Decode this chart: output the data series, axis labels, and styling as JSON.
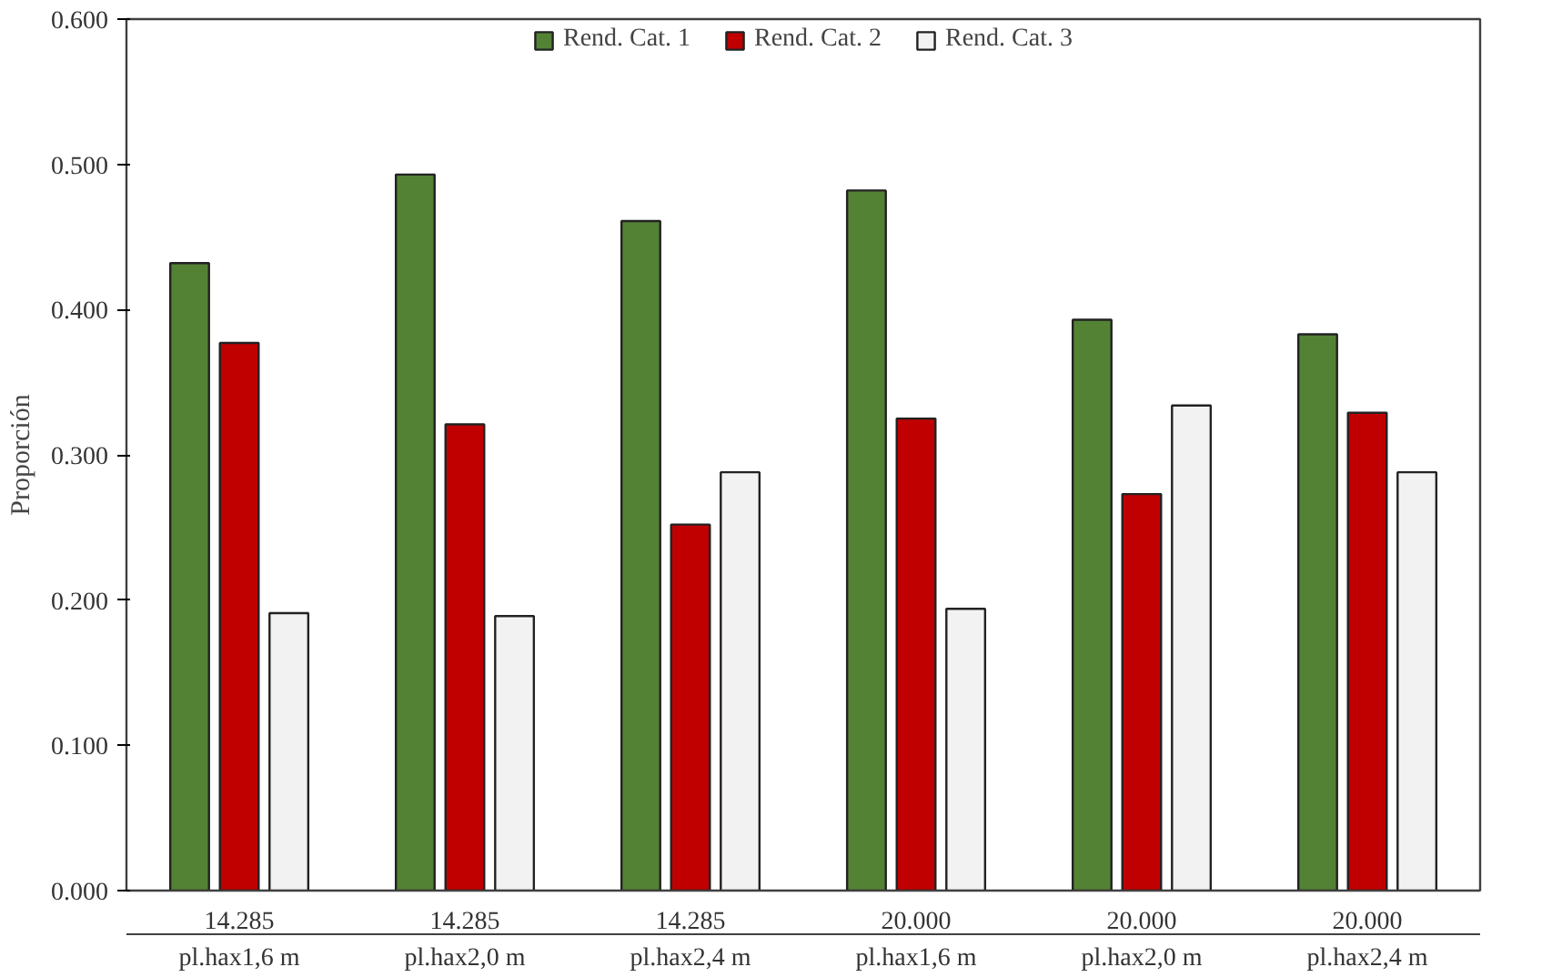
{
  "chart_data": {
    "type": "bar",
    "ylabel": "Proporción",
    "categories": [
      "14.285\npl.hax1,6 m",
      "14.285\npl.hax2,0 m",
      "14.285\npl.hax2,4 m",
      "20.000\npl.hax1,6 m",
      "20.000\npl.hax2,0 m",
      "20.000\npl.hax2,4 m"
    ],
    "series": [
      {
        "name": "Rend. Cat. 1",
        "color": "#548235",
        "values": [
          0.432,
          0.493,
          0.461,
          0.482,
          0.393,
          0.383
        ]
      },
      {
        "name": "Rend. Cat. 2",
        "color": "#c00000",
        "values": [
          0.377,
          0.321,
          0.252,
          0.325,
          0.273,
          0.329
        ]
      },
      {
        "name": "Rend. Cat. 3",
        "color": "#f2f2f2",
        "values": [
          0.191,
          0.189,
          0.288,
          0.194,
          0.334,
          0.288
        ]
      }
    ],
    "ylim": [
      0,
      0.6
    ],
    "yticks": [
      {
        "value": 0,
        "label": "0.000"
      },
      {
        "value": 0.1,
        "label": "0.100"
      },
      {
        "value": 0.2,
        "label": "0.200"
      },
      {
        "value": 0.3,
        "label": "0.300"
      },
      {
        "value": 0.4,
        "label": "0.400"
      },
      {
        "value": 0.5,
        "label": "0.500"
      },
      {
        "value": 0.6,
        "label": "0.600"
      }
    ],
    "grid": false,
    "legend": "top"
  }
}
